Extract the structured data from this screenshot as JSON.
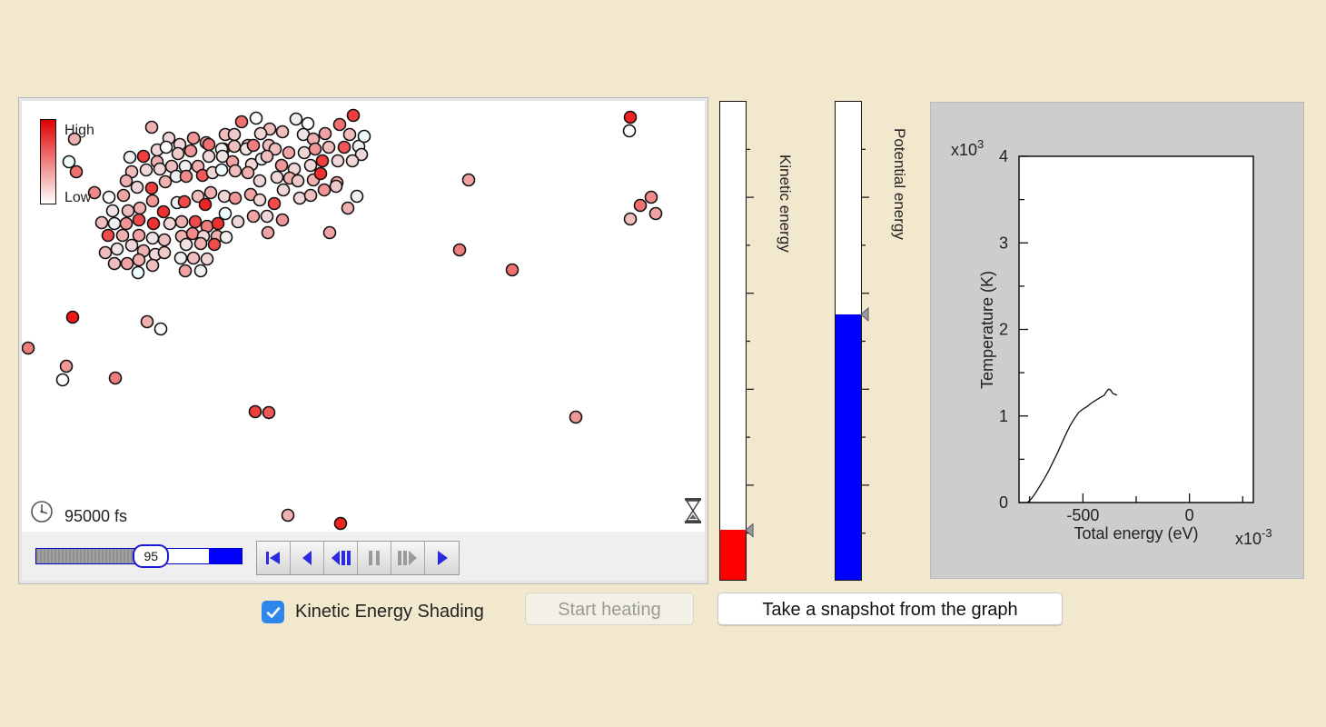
{
  "simulation": {
    "legend": {
      "high_label": "High",
      "low_label": "Low",
      "high_color": "#e00000",
      "low_color": "#ffffff"
    },
    "time_label": "95000 fs",
    "clock_icon": "clock-icon",
    "hourglass_icon": "hourglass-icon",
    "atoms": [
      [
        167,
        140,
        0.35
      ],
      [
        198,
        159,
        0.2
      ],
      [
        213,
        152,
        0.45
      ],
      [
        227,
        157,
        0.4
      ],
      [
        248,
        148,
        0.3
      ],
      [
        266,
        134,
        0.6
      ],
      [
        282,
        130,
        0.0
      ],
      [
        297,
        142,
        0.3
      ],
      [
        326,
        131,
        0.1
      ],
      [
        339,
        136,
        0.0
      ],
      [
        358,
        147,
        0.4
      ],
      [
        374,
        137,
        0.6
      ],
      [
        389,
        127,
        0.8
      ],
      [
        395,
        161,
        0.1
      ],
      [
        401,
        150,
        0.05
      ],
      [
        385,
        148,
        0.3
      ],
      [
        186,
        152,
        0.2
      ],
      [
        246,
        164,
        0.4
      ],
      [
        258,
        148,
        0.25
      ],
      [
        273,
        160,
        0.35
      ],
      [
        287,
        147,
        0.2
      ],
      [
        311,
        145,
        0.3
      ],
      [
        334,
        148,
        0.15
      ],
      [
        345,
        153,
        0.35
      ],
      [
        143,
        173,
        0.1
      ],
      [
        158,
        172,
        0.8
      ],
      [
        173,
        165,
        0.2
      ],
      [
        183,
        162,
        0.0
      ],
      [
        196,
        169,
        0.25
      ],
      [
        210,
        166,
        0.45
      ],
      [
        230,
        159,
        0.6
      ],
      [
        244,
        164,
        0.1
      ],
      [
        258,
        161,
        0.3
      ],
      [
        271,
        164,
        0.15
      ],
      [
        279,
        160,
        0.55
      ],
      [
        296,
        160,
        0.3
      ],
      [
        303,
        164,
        0.3
      ],
      [
        318,
        168,
        0.4
      ],
      [
        335,
        168,
        0.2
      ],
      [
        347,
        164,
        0.45
      ],
      [
        362,
        162,
        0.3
      ],
      [
        379,
        162,
        0.7
      ],
      [
        398,
        170,
        0.2
      ],
      [
        145,
        189,
        0.3
      ],
      [
        161,
        187,
        0.2
      ],
      [
        173,
        178,
        0.35
      ],
      [
        176,
        186,
        0.2
      ],
      [
        189,
        183,
        0.3
      ],
      [
        204,
        183,
        0.1
      ],
      [
        218,
        183,
        0.35
      ],
      [
        230,
        172,
        0.2
      ],
      [
        245,
        172,
        0.15
      ],
      [
        256,
        178,
        0.4
      ],
      [
        277,
        181,
        0.2
      ],
      [
        288,
        175,
        0.1
      ],
      [
        294,
        172,
        0.3
      ],
      [
        310,
        182,
        0.45
      ],
      [
        324,
        186,
        0.2
      ],
      [
        342,
        182,
        0.2
      ],
      [
        355,
        177,
        0.8
      ],
      [
        372,
        177,
        0.2
      ],
      [
        388,
        177,
        0.2
      ],
      [
        120,
        217,
        0.0
      ],
      [
        136,
        215,
        0.4
      ],
      [
        139,
        199,
        0.35
      ],
      [
        151,
        206,
        0.2
      ],
      [
        167,
        207,
        0.8
      ],
      [
        182,
        200,
        0.35
      ],
      [
        194,
        194,
        0.1
      ],
      [
        205,
        194,
        0.5
      ],
      [
        223,
        193,
        0.7
      ],
      [
        234,
        190,
        0.2
      ],
      [
        244,
        187,
        0.05
      ],
      [
        259,
        188,
        0.3
      ],
      [
        273,
        190,
        0.35
      ],
      [
        286,
        199,
        0.2
      ],
      [
        305,
        195,
        0.2
      ],
      [
        319,
        196,
        0.35
      ],
      [
        328,
        199,
        0.25
      ],
      [
        345,
        198,
        0.35
      ],
      [
        353,
        191,
        0.85
      ],
      [
        371,
        201,
        0.4
      ],
      [
        124,
        232,
        0.15
      ],
      [
        141,
        232,
        0.3
      ],
      [
        154,
        229,
        0.35
      ],
      [
        168,
        221,
        0.45
      ],
      [
        180,
        233,
        0.85
      ],
      [
        195,
        223,
        0.1
      ],
      [
        203,
        222,
        0.75
      ],
      [
        218,
        216,
        0.3
      ],
      [
        226,
        225,
        0.9
      ],
      [
        232,
        212,
        0.35
      ],
      [
        247,
        216,
        0.2
      ],
      [
        259,
        218,
        0.45
      ],
      [
        276,
        214,
        0.4
      ],
      [
        286,
        220,
        0.2
      ],
      [
        302,
        224,
        0.75
      ],
      [
        312,
        209,
        0.2
      ],
      [
        330,
        218,
        0.2
      ],
      [
        342,
        215,
        0.3
      ],
      [
        357,
        209,
        0.45
      ],
      [
        370,
        205,
        0.25
      ],
      [
        393,
        216,
        0.1
      ],
      [
        383,
        229,
        0.35
      ],
      [
        112,
        245,
        0.3
      ],
      [
        126,
        246,
        0.1
      ],
      [
        139,
        246,
        0.45
      ],
      [
        153,
        242,
        0.75
      ],
      [
        169,
        246,
        0.85
      ],
      [
        187,
        246,
        0.2
      ],
      [
        200,
        244,
        0.35
      ],
      [
        215,
        244,
        0.75
      ],
      [
        228,
        249,
        0.55
      ],
      [
        240,
        246,
        0.85
      ],
      [
        248,
        235,
        0.05
      ],
      [
        262,
        244,
        0.2
      ],
      [
        279,
        238,
        0.4
      ],
      [
        294,
        238,
        0.2
      ],
      [
        311,
        242,
        0.45
      ],
      [
        119,
        259,
        0.75
      ],
      [
        135,
        259,
        0.35
      ],
      [
        153,
        259,
        0.4
      ],
      [
        168,
        262,
        0.15
      ],
      [
        181,
        264,
        0.3
      ],
      [
        200,
        260,
        0.35
      ],
      [
        212,
        257,
        0.5
      ],
      [
        224,
        260,
        0.2
      ],
      [
        239,
        260,
        0.35
      ],
      [
        249,
        261,
        0.1
      ],
      [
        295,
        256,
        0.4
      ],
      [
        363,
        256,
        0.4
      ],
      [
        116,
        278,
        0.3
      ],
      [
        129,
        274,
        0.15
      ],
      [
        145,
        270,
        0.2
      ],
      [
        158,
        276,
        0.35
      ],
      [
        171,
        280,
        0.2
      ],
      [
        181,
        278,
        0.25
      ],
      [
        205,
        269,
        0.15
      ],
      [
        221,
        268,
        0.35
      ],
      [
        236,
        269,
        0.75
      ],
      [
        126,
        290,
        0.3
      ],
      [
        140,
        290,
        0.4
      ],
      [
        153,
        286,
        0.35
      ],
      [
        168,
        292,
        0.3
      ],
      [
        199,
        284,
        0.1
      ],
      [
        213,
        284,
        0.3
      ],
      [
        228,
        285,
        0.2
      ],
      [
        152,
        300,
        0.05
      ],
      [
        204,
        298,
        0.4
      ],
      [
        221,
        298,
        0.1
      ],
      [
        82,
        153,
        0.35
      ],
      [
        76,
        178,
        0.05
      ],
      [
        84,
        189,
        0.6
      ],
      [
        104,
        212,
        0.5
      ],
      [
        516,
        198,
        0.4
      ],
      [
        506,
        275,
        0.55
      ],
      [
        564,
        297,
        0.6
      ],
      [
        694,
        129,
        0.9
      ],
      [
        693,
        144,
        0.0
      ],
      [
        717,
        217,
        0.5
      ],
      [
        705,
        226,
        0.6
      ],
      [
        722,
        235,
        0.4
      ],
      [
        694,
        241,
        0.3
      ],
      [
        80,
        349,
        0.95
      ],
      [
        162,
        354,
        0.35
      ],
      [
        177,
        362,
        0.0
      ],
      [
        31,
        383,
        0.55
      ],
      [
        73,
        403,
        0.45
      ],
      [
        69,
        418,
        0.0
      ],
      [
        127,
        416,
        0.55
      ],
      [
        281,
        453,
        0.8
      ],
      [
        296,
        454,
        0.7
      ],
      [
        634,
        459,
        0.45
      ],
      [
        317,
        567,
        0.35
      ],
      [
        375,
        576,
        0.9
      ]
    ]
  },
  "time_slider": {
    "value": "95",
    "fraction": 0.56
  },
  "player_controls": [
    {
      "name": "go-to-start-button",
      "icon": "skip-to-start-icon"
    },
    {
      "name": "step-back-button",
      "icon": "step-back-icon"
    },
    {
      "name": "rewind-button",
      "icon": "rewind-icon"
    },
    {
      "name": "pause-button",
      "icon": "pause-icon"
    },
    {
      "name": "step-forward-button",
      "icon": "step-forward-icon"
    },
    {
      "name": "play-button",
      "icon": "play-icon"
    }
  ],
  "kinetic_energy_bar": {
    "label": "Kinetic energy",
    "fraction": 0.105,
    "color": "#ff0000"
  },
  "potential_energy_bar": {
    "label": "Potential energy",
    "fraction": 0.555,
    "color": "#0000ff"
  },
  "graph": {
    "multiplier_y": "x10",
    "multiplier_y_exp": "3",
    "multiplier_x": "x10",
    "multiplier_x_exp": "-3",
    "ylabel": "Temperature (K)",
    "xlabel": "Total energy (eV)",
    "y_ticks": [
      "0",
      "1",
      "2",
      "3",
      "4"
    ],
    "x_ticks": [
      "-500",
      "0"
    ]
  },
  "chart_data": {
    "type": "line",
    "xlabel": "Total energy (eV)",
    "ylabel": "Temperature (K)",
    "x_multiplier": "x10^-3",
    "y_multiplier": "x10^3",
    "xlim": [
      -800,
      300
    ],
    "ylim": [
      0,
      4
    ],
    "x": [
      -760,
      -740,
      -720,
      -700,
      -680,
      -660,
      -640,
      -620,
      -600,
      -580,
      -560,
      -540,
      -520,
      -500,
      -480,
      -460,
      -440,
      -420,
      -400,
      -390,
      -380,
      -370,
      -360,
      -350,
      -340
    ],
    "y": [
      0.0,
      0.05,
      0.12,
      0.2,
      0.28,
      0.37,
      0.47,
      0.57,
      0.68,
      0.79,
      0.89,
      0.97,
      1.04,
      1.08,
      1.11,
      1.15,
      1.18,
      1.21,
      1.24,
      1.28,
      1.31,
      1.3,
      1.26,
      1.25,
      1.24
    ]
  },
  "controls": {
    "kinetic_shading_checked": true,
    "kinetic_shading_label": "Kinetic Energy Shading",
    "start_heating_label": "Start heating",
    "snapshot_label": "Take a snapshot from the graph"
  }
}
